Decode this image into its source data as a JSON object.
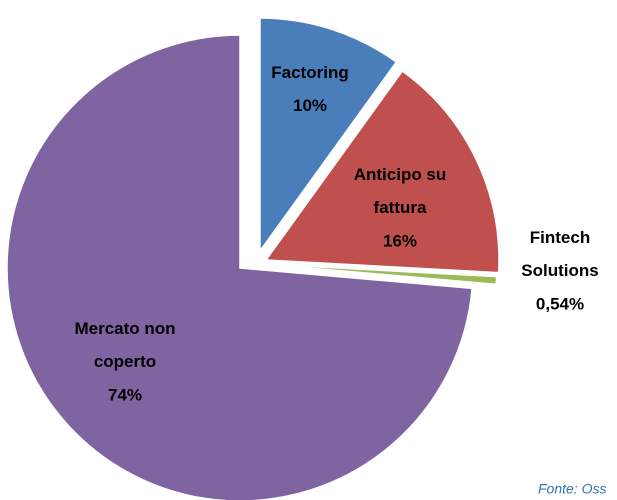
{
  "chart_data": {
    "type": "pie",
    "categories": [
      "Factoring",
      "Anticipo su\nfattura",
      "Fintech\nSolutions",
      "Mercato non\ncoperto"
    ],
    "values": [
      10,
      16,
      0.54,
      74
    ],
    "value_labels": [
      "10%",
      "16%",
      "0,54%",
      "74%"
    ],
    "colors": [
      "#4a7ebb",
      "#c0504d",
      "#9bbb59",
      "#8064a2"
    ],
    "source": "Fonte: Oss"
  }
}
